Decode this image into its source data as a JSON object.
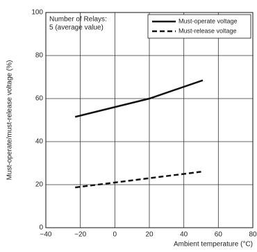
{
  "chart_data": {
    "type": "line",
    "annotation": [
      "Number of Relays:",
      "5 (average value)"
    ],
    "x_label": "Ambient temperature (°C)",
    "y_label": "Must-operate/must-release voltage (%)",
    "xlim": [
      -40,
      80
    ],
    "xticks": [
      {
        "value": -40,
        "label": "−40"
      },
      {
        "value": -20,
        "label": "−20"
      },
      0,
      20,
      40,
      60,
      80
    ],
    "ylim": [
      0,
      100
    ],
    "yticks": [
      0,
      20,
      40,
      60,
      80,
      100
    ],
    "grid": true,
    "legend": "upper right",
    "series": [
      {
        "name": "Must-operate voltage",
        "color": "#111111",
        "dash": "solid",
        "x": [
          -23,
          20,
          51
        ],
        "values": [
          51.5,
          60,
          68.5
        ]
      },
      {
        "name": "Must-release voltage",
        "color": "#111111",
        "dash": "dashed",
        "x": [
          -23,
          50
        ],
        "values": [
          18.7,
          26
        ]
      }
    ]
  }
}
